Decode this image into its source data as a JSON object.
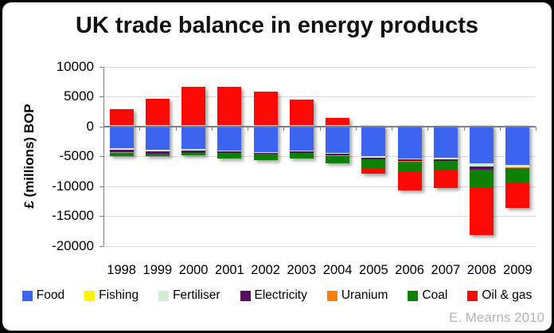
{
  "title": "UK trade balance in energy products",
  "y_axis_title": "£ (millions) BOP",
  "attribution": "E. Mearns 2010",
  "colors": {
    "background": "#000000",
    "panel": "#ffffff",
    "gridline": "#d9d9d9",
    "axis_line": "#7f7f7f",
    "title_text": "#111111",
    "attribution_text": "#b5b5b5"
  },
  "y_axis": {
    "tick_values": [
      10000,
      5000,
      0,
      -5000,
      -10000,
      -15000,
      -20000
    ],
    "tick_labels": [
      "10000",
      "5000",
      "0",
      "-5000",
      "-10000",
      "-15000",
      "-20000"
    ]
  },
  "chart_data": {
    "type": "bar",
    "stacked": true,
    "title": "UK trade balance in energy products",
    "ylabel": "£ (millions) BOP",
    "ylim": [
      -20000,
      10000
    ],
    "grid": true,
    "legend_position": "bottom",
    "categories": [
      "1998",
      "1999",
      "2000",
      "2001",
      "2002",
      "2003",
      "2004",
      "2005",
      "2006",
      "2007",
      "2008",
      "2009"
    ],
    "series": [
      {
        "name": "Food",
        "color": "#3b64ef",
        "values": [
          -3650,
          -3900,
          -3850,
          -4000,
          -4300,
          -4100,
          -4450,
          -5050,
          -5400,
          -5300,
          -6200,
          -6400
        ]
      },
      {
        "name": "Fishing",
        "color": "#fff200",
        "values": [
          150,
          150,
          150,
          150,
          150,
          150,
          150,
          150,
          150,
          150,
          150,
          200
        ]
      },
      {
        "name": "Fertiliser",
        "color": "#cfeece",
        "values": [
          -250,
          -250,
          -200,
          -200,
          -150,
          -150,
          -150,
          -170,
          -160,
          -170,
          -550,
          -450
        ]
      },
      {
        "name": "Electricity",
        "color": "#5a0e63",
        "values": [
          -400,
          -400,
          -350,
          -200,
          -150,
          -150,
          -300,
          -300,
          -260,
          -270,
          -450,
          -50
        ]
      },
      {
        "name": "Uranium",
        "color": "#ff7f00",
        "values": [
          -100,
          -100,
          -100,
          -100,
          -50,
          -50,
          -50,
          -50,
          -50,
          -50,
          -50,
          -50
        ]
      },
      {
        "name": "Coal",
        "color": "#0e8006",
        "values": [
          -550,
          -350,
          -350,
          -950,
          -1000,
          -1000,
          -1300,
          -1550,
          -1750,
          -1600,
          -3000,
          -2450
        ]
      },
      {
        "name": "Oil & gas",
        "color": "#fb0a05",
        "values": [
          2700,
          4500,
          6400,
          6500,
          5600,
          4300,
          1300,
          -800,
          -3050,
          -3000,
          -8000,
          -4250
        ]
      }
    ]
  }
}
